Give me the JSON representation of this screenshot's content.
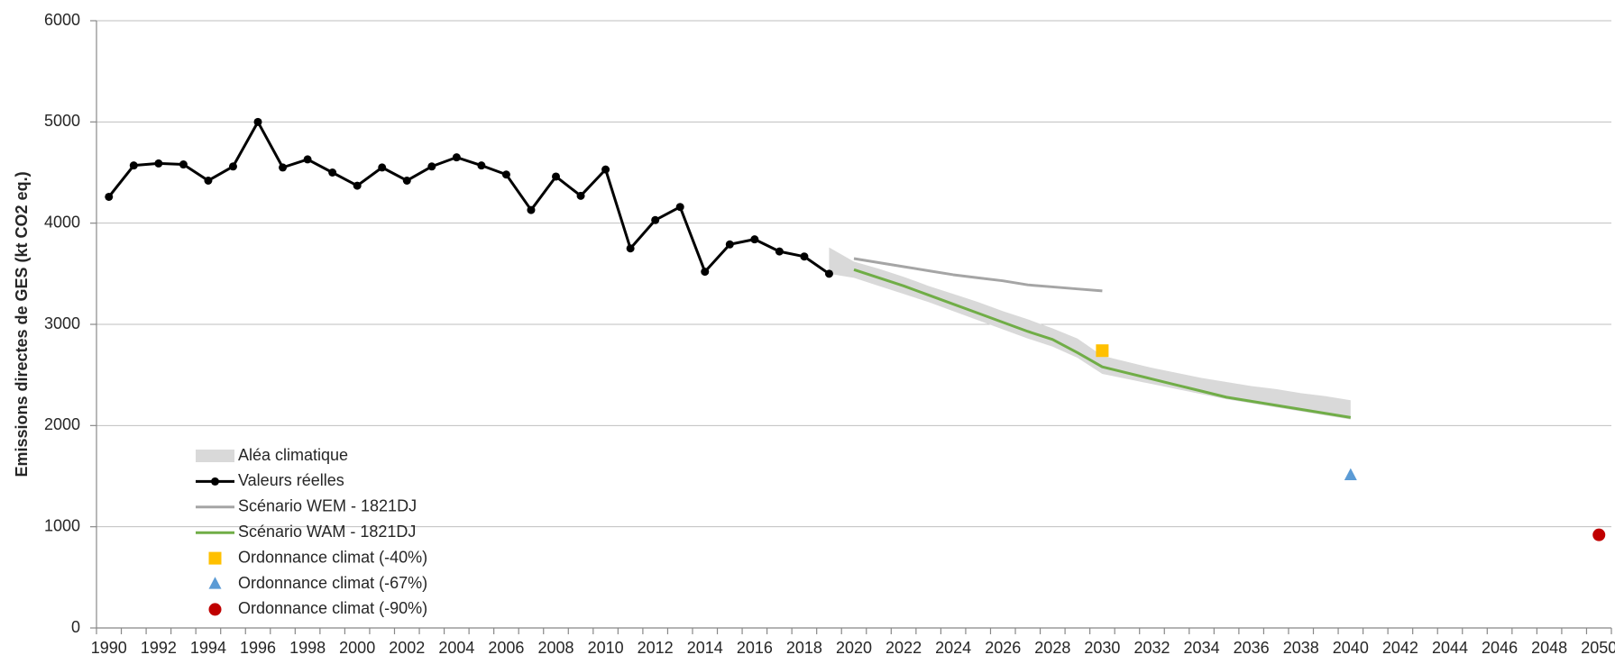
{
  "chart_data": {
    "type": "line",
    "y_label": "Emissions directes de GES (kt CO2 eq.)",
    "categories": [
      "1990",
      null,
      "1992",
      null,
      "1994",
      null,
      "1996",
      null,
      "1998",
      null,
      "2000",
      null,
      "2002",
      null,
      "2004",
      null,
      "2006",
      null,
      "2008",
      null,
      "2010",
      null,
      "2012",
      null,
      "2014",
      null,
      "2016",
      null,
      "2018",
      null,
      "2020",
      null,
      "2022",
      null,
      "2024",
      null,
      "2026",
      null,
      "2028",
      null,
      "2030",
      null,
      "2032",
      null,
      "2034",
      null,
      "2036",
      null,
      "2038",
      null,
      "2040",
      null,
      "2042",
      null,
      "2044",
      null,
      "2046",
      null,
      "2048",
      null,
      "2050"
    ],
    "ylim": [
      0,
      6000
    ],
    "yticks": [
      0,
      1000,
      2000,
      3000,
      4000,
      5000,
      6000
    ],
    "grid": true,
    "legend": "lower left",
    "series": [
      {
        "name": "Aléa climatique",
        "type": "band",
        "color": "#d9d9d9",
        "lower": [
          null,
          null,
          null,
          null,
          null,
          null,
          null,
          null,
          null,
          null,
          null,
          null,
          null,
          null,
          null,
          null,
          null,
          null,
          null,
          null,
          null,
          null,
          null,
          null,
          null,
          null,
          null,
          null,
          null,
          3500,
          3460,
          3380,
          3300,
          3220,
          3130,
          3040,
          2950,
          2860,
          2780,
          2670,
          2510,
          2460,
          2410,
          2360,
          2310,
          2260,
          2220,
          2180,
          2140,
          2100,
          2060,
          null,
          null,
          null,
          null,
          null,
          null,
          null,
          null,
          null,
          null
        ],
        "upper": [
          null,
          null,
          null,
          null,
          null,
          null,
          null,
          null,
          null,
          null,
          null,
          null,
          null,
          null,
          null,
          null,
          null,
          null,
          null,
          null,
          null,
          null,
          null,
          null,
          null,
          null,
          null,
          null,
          null,
          3760,
          3620,
          3550,
          3470,
          3380,
          3300,
          3220,
          3130,
          3050,
          2960,
          2860,
          2690,
          2630,
          2570,
          2520,
          2470,
          2430,
          2390,
          2360,
          2320,
          2290,
          2250,
          null,
          null,
          null,
          null,
          null,
          null,
          null,
          null,
          null,
          null
        ]
      },
      {
        "name": "Valeurs réelles",
        "type": "line",
        "marker": "circle",
        "color": "#000000",
        "values": [
          4260,
          4570,
          4590,
          4580,
          4420,
          4560,
          5000,
          4550,
          4630,
          4500,
          4370,
          4550,
          4420,
          4560,
          4650,
          4570,
          4480,
          4130,
          4460,
          4270,
          4530,
          3750,
          4030,
          4160,
          3520,
          3790,
          3840,
          3720,
          3670,
          3500,
          null,
          null,
          null,
          null,
          null,
          null,
          null,
          null,
          null,
          null,
          null,
          null,
          null,
          null,
          null,
          null,
          null,
          null,
          null,
          null,
          null,
          null,
          null,
          null,
          null,
          null,
          null,
          null,
          null,
          null,
          null
        ]
      },
      {
        "name": "Scénario WEM - 1821DJ",
        "type": "line",
        "color": "#a5a5a5",
        "values": [
          null,
          null,
          null,
          null,
          null,
          null,
          null,
          null,
          null,
          null,
          null,
          null,
          null,
          null,
          null,
          null,
          null,
          null,
          null,
          null,
          null,
          null,
          null,
          null,
          null,
          null,
          null,
          null,
          null,
          null,
          3650,
          3610,
          3570,
          3530,
          3490,
          3460,
          3430,
          3390,
          3370,
          3350,
          3330,
          null,
          null,
          null,
          null,
          null,
          null,
          null,
          null,
          null,
          null,
          null,
          null,
          null,
          null,
          null,
          null,
          null,
          null,
          null,
          null
        ]
      },
      {
        "name": "Scénario WAM - 1821DJ",
        "type": "line",
        "color": "#70ad47",
        "values": [
          null,
          null,
          null,
          null,
          null,
          null,
          null,
          null,
          null,
          null,
          null,
          null,
          null,
          null,
          null,
          null,
          null,
          null,
          null,
          null,
          null,
          null,
          null,
          null,
          null,
          null,
          null,
          null,
          null,
          null,
          3540,
          3460,
          3380,
          3290,
          3200,
          3110,
          3020,
          2930,
          2850,
          2720,
          2580,
          2520,
          2460,
          2400,
          2340,
          2280,
          2240,
          2200,
          2160,
          2120,
          2080,
          null,
          null,
          null,
          null,
          null,
          null,
          null,
          null,
          null,
          null
        ]
      },
      {
        "name": "Ordonnance climat (-40%)",
        "type": "marker",
        "marker": "square",
        "color": "#ffc000",
        "values": [
          null,
          null,
          null,
          null,
          null,
          null,
          null,
          null,
          null,
          null,
          null,
          null,
          null,
          null,
          null,
          null,
          null,
          null,
          null,
          null,
          null,
          null,
          null,
          null,
          null,
          null,
          null,
          null,
          null,
          null,
          null,
          null,
          null,
          null,
          null,
          null,
          null,
          null,
          null,
          null,
          2740,
          null,
          null,
          null,
          null,
          null,
          null,
          null,
          null,
          null,
          null,
          null,
          null,
          null,
          null,
          null,
          null,
          null,
          null,
          null,
          null
        ]
      },
      {
        "name": "Ordonnance climat (-67%)",
        "type": "marker",
        "marker": "triangle",
        "color": "#5b9bd5",
        "values": [
          null,
          null,
          null,
          null,
          null,
          null,
          null,
          null,
          null,
          null,
          null,
          null,
          null,
          null,
          null,
          null,
          null,
          null,
          null,
          null,
          null,
          null,
          null,
          null,
          null,
          null,
          null,
          null,
          null,
          null,
          null,
          null,
          null,
          null,
          null,
          null,
          null,
          null,
          null,
          null,
          null,
          null,
          null,
          null,
          null,
          null,
          null,
          null,
          null,
          null,
          1510,
          null,
          null,
          null,
          null,
          null,
          null,
          null,
          null,
          null,
          null
        ]
      },
      {
        "name": "Ordonnance climat (-90%)",
        "type": "marker",
        "marker": "circle",
        "color": "#c00000",
        "values": [
          null,
          null,
          null,
          null,
          null,
          null,
          null,
          null,
          null,
          null,
          null,
          null,
          null,
          null,
          null,
          null,
          null,
          null,
          null,
          null,
          null,
          null,
          null,
          null,
          null,
          null,
          null,
          null,
          null,
          null,
          null,
          null,
          null,
          null,
          null,
          null,
          null,
          null,
          null,
          null,
          null,
          null,
          null,
          null,
          null,
          null,
          null,
          null,
          null,
          null,
          null,
          null,
          null,
          null,
          null,
          null,
          null,
          null,
          null,
          null,
          920
        ]
      }
    ]
  }
}
